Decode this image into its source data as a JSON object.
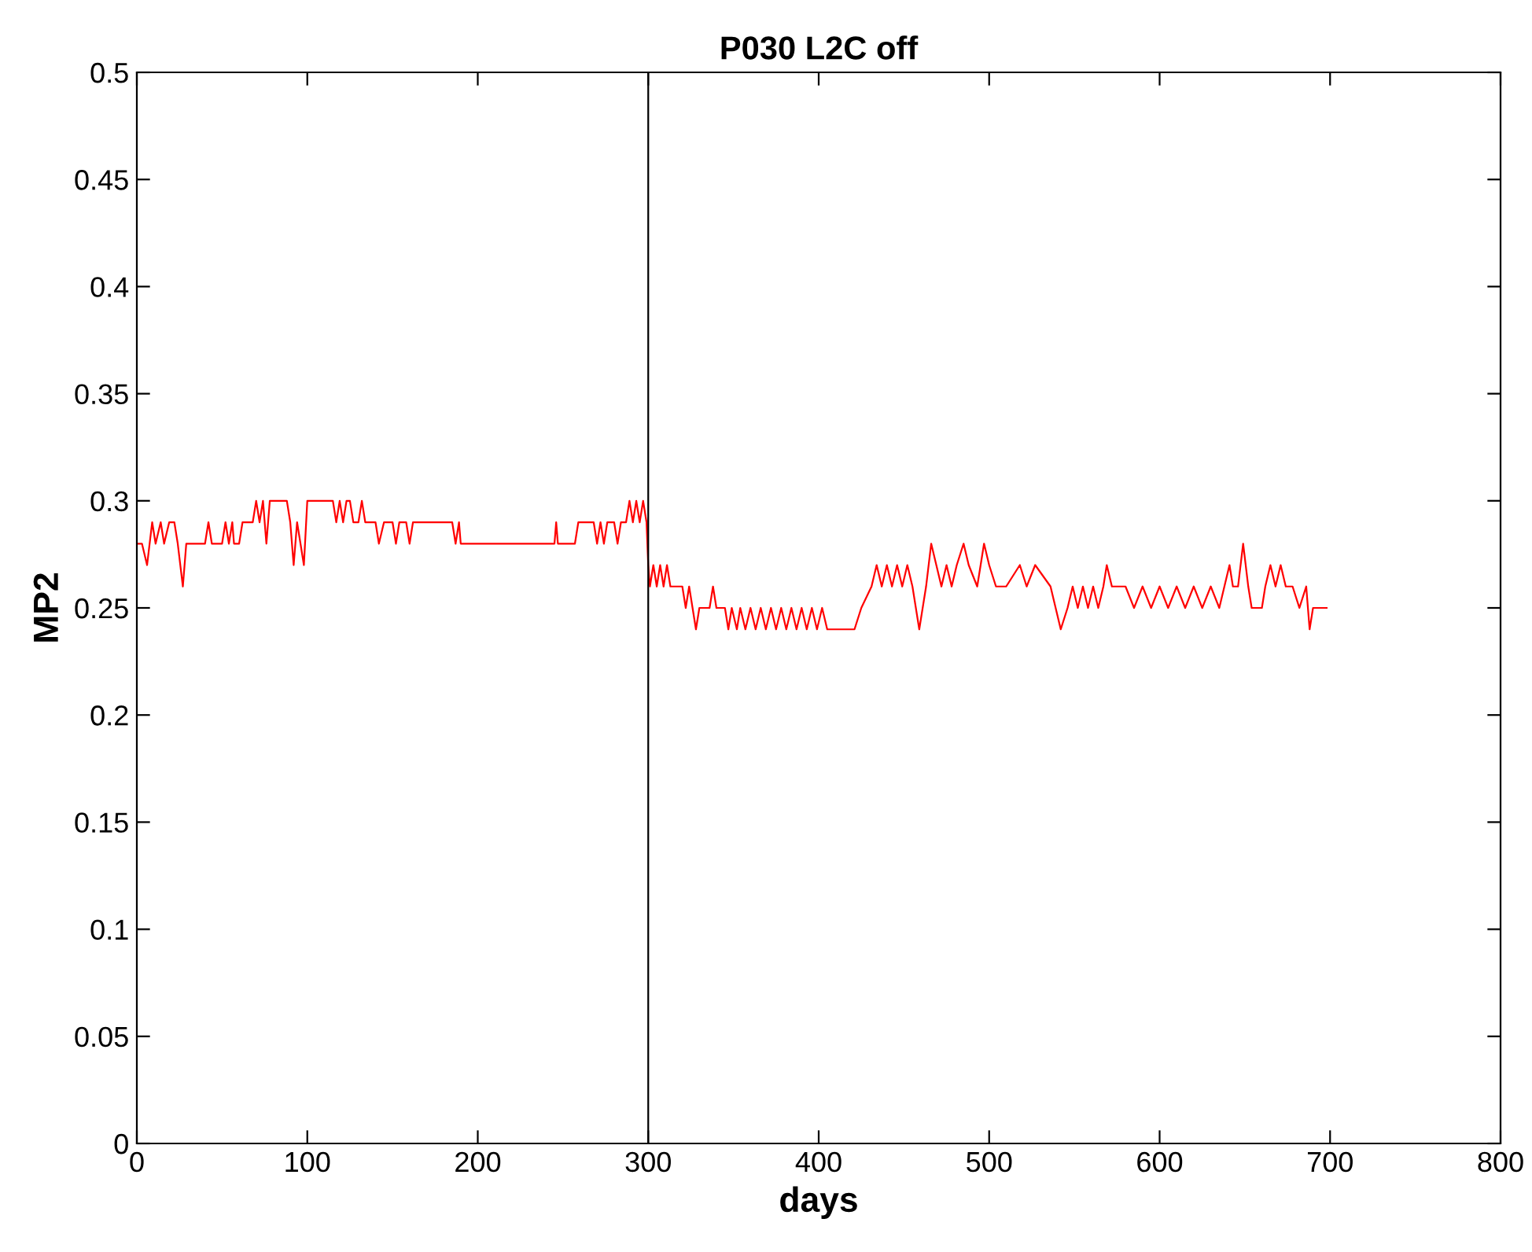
{
  "chart_data": {
    "type": "line",
    "title": "P030 L2C off",
    "xlabel": "days",
    "ylabel": "MP2",
    "series": [
      {
        "color": "#ff0000",
        "x": [
          0,
          3,
          6,
          9,
          11,
          14,
          16,
          19,
          22,
          24,
          27,
          29,
          35,
          40,
          42,
          44,
          50,
          52,
          54,
          56,
          57,
          60,
          62,
          68,
          70,
          72,
          74,
          76,
          78,
          82,
          88,
          90,
          92,
          94,
          96,
          98,
          100,
          115,
          117,
          119,
          121,
          123,
          125,
          127,
          130,
          132,
          134,
          140,
          142,
          145,
          150,
          152,
          154,
          158,
          160,
          162,
          185,
          187,
          189,
          190,
          245,
          246,
          247,
          257,
          259,
          268,
          270,
          272,
          274,
          276,
          280,
          282,
          284,
          287,
          289,
          291,
          293,
          295,
          297,
          299,
          300,
          301,
          303,
          305,
          307,
          309,
          311,
          313,
          320,
          322,
          324,
          326,
          328,
          330,
          336,
          338,
          340,
          345,
          347,
          349,
          352,
          354,
          357,
          360,
          363,
          366,
          369,
          372,
          375,
          378,
          381,
          384,
          387,
          390,
          393,
          396,
          399,
          402,
          405,
          409,
          421,
          425,
          431,
          434,
          437,
          440,
          443,
          446,
          449,
          452,
          455,
          459,
          463,
          466,
          469,
          472,
          475,
          478,
          481,
          485,
          488,
          493,
          497,
          500,
          504,
          510,
          518,
          522,
          527,
          536,
          539,
          542,
          546,
          549,
          552,
          555,
          558,
          561,
          564,
          567,
          569,
          572,
          580,
          585,
          590,
          595,
          600,
          605,
          610,
          615,
          620,
          625,
          630,
          635,
          638,
          641,
          643,
          646,
          649,
          652,
          654,
          660,
          662,
          665,
          668,
          671,
          674,
          678,
          682,
          686,
          688,
          690,
          698
        ],
        "values": [
          0.28,
          0.28,
          0.27,
          0.29,
          0.28,
          0.29,
          0.28,
          0.29,
          0.29,
          0.28,
          0.26,
          0.28,
          0.28,
          0.28,
          0.29,
          0.28,
          0.28,
          0.29,
          0.28,
          0.29,
          0.28,
          0.28,
          0.29,
          0.29,
          0.3,
          0.29,
          0.3,
          0.28,
          0.3,
          0.3,
          0.3,
          0.29,
          0.27,
          0.29,
          0.28,
          0.27,
          0.3,
          0.3,
          0.29,
          0.3,
          0.29,
          0.3,
          0.3,
          0.29,
          0.29,
          0.3,
          0.29,
          0.29,
          0.28,
          0.29,
          0.29,
          0.28,
          0.29,
          0.29,
          0.28,
          0.29,
          0.29,
          0.28,
          0.29,
          0.28,
          0.28,
          0.29,
          0.28,
          0.28,
          0.29,
          0.29,
          0.28,
          0.29,
          0.28,
          0.29,
          0.29,
          0.28,
          0.29,
          0.29,
          0.3,
          0.29,
          0.3,
          0.29,
          0.3,
          0.29,
          0.27,
          0.26,
          0.27,
          0.26,
          0.27,
          0.26,
          0.27,
          0.26,
          0.26,
          0.25,
          0.26,
          0.25,
          0.24,
          0.25,
          0.25,
          0.26,
          0.25,
          0.25,
          0.24,
          0.25,
          0.24,
          0.25,
          0.24,
          0.25,
          0.24,
          0.25,
          0.24,
          0.25,
          0.24,
          0.25,
          0.24,
          0.25,
          0.24,
          0.25,
          0.24,
          0.25,
          0.24,
          0.25,
          0.24,
          0.24,
          0.24,
          0.25,
          0.26,
          0.27,
          0.26,
          0.27,
          0.26,
          0.27,
          0.26,
          0.27,
          0.26,
          0.24,
          0.26,
          0.28,
          0.27,
          0.26,
          0.27,
          0.26,
          0.27,
          0.28,
          0.27,
          0.26,
          0.28,
          0.27,
          0.26,
          0.26,
          0.27,
          0.26,
          0.27,
          0.26,
          0.25,
          0.24,
          0.25,
          0.26,
          0.25,
          0.26,
          0.25,
          0.26,
          0.25,
          0.26,
          0.27,
          0.26,
          0.26,
          0.25,
          0.26,
          0.25,
          0.26,
          0.25,
          0.26,
          0.25,
          0.26,
          0.25,
          0.26,
          0.25,
          0.26,
          0.27,
          0.26,
          0.26,
          0.28,
          0.26,
          0.25,
          0.25,
          0.26,
          0.27,
          0.26,
          0.27,
          0.26,
          0.26,
          0.25,
          0.26,
          0.24,
          0.25,
          0.25
        ]
      }
    ],
    "ref_lines": [
      {
        "axis": "x",
        "value": 300,
        "color": "#000000"
      }
    ],
    "xlim": [
      0,
      800
    ],
    "xticks": [
      0,
      100,
      200,
      300,
      400,
      500,
      600,
      700,
      800
    ],
    "ylim": [
      0,
      0.5
    ],
    "yticks": [
      0,
      0.05,
      0.1,
      0.15,
      0.2,
      0.25,
      0.3,
      0.35,
      0.4,
      0.45,
      0.5
    ],
    "grid": false,
    "legend": false
  }
}
